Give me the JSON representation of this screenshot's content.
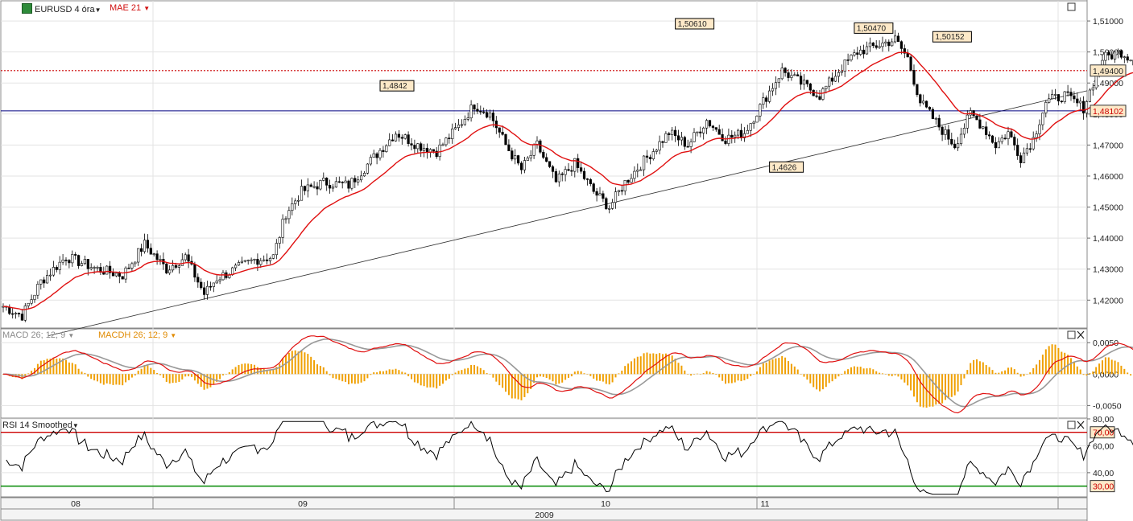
{
  "header": {
    "symbol": "EURUSD 4 óra",
    "ma_label": "MAE 21",
    "macd_label": "MACD 26; 12; 9",
    "macdh_label": "MACDH 26; 12; 9",
    "rsi_label": "RSI 14 Smoothed"
  },
  "colors": {
    "candle": "#000000",
    "ma": "#e01010",
    "macd_line": "#e01010",
    "signal_line": "#999999",
    "histogram": "#f0a000",
    "rsi_line": "#000000",
    "rsi_upper": "#cc0000",
    "rsi_lower": "#008800",
    "current_price_line": "#cc0000",
    "support_line": "#000080",
    "grid": "#e3e3e3"
  },
  "chart_data": [
    {
      "type": "candlestick",
      "title": "EURUSD 4 óra",
      "overlay": "MAE 21",
      "ylim": [
        1.411,
        1.5165
      ],
      "y_ticks": [
        "1,42000",
        "1,43000",
        "1,44000",
        "1,45000",
        "1,46000",
        "1,47000",
        "1,48000",
        "1,49000",
        "1,50000",
        "1,51000"
      ],
      "x_month_labels": [
        "08",
        "09",
        "10",
        "11"
      ],
      "x_year_label": "2009",
      "annotations": [
        "1,4842",
        "1,50610",
        "1,50470",
        "1,50152",
        "1,4626"
      ],
      "current_price": "1,49400",
      "horizontal_line": "1,48102",
      "trendline": true,
      "anchors": [
        [
          0,
          1.418
        ],
        [
          6,
          1.415
        ],
        [
          12,
          1.426
        ],
        [
          20,
          1.434
        ],
        [
          30,
          1.43
        ],
        [
          38,
          1.428
        ],
        [
          45,
          1.438
        ],
        [
          52,
          1.43
        ],
        [
          58,
          1.434
        ],
        [
          64,
          1.422
        ],
        [
          68,
          1.427
        ],
        [
          74,
          1.43
        ],
        [
          80,
          1.433
        ],
        [
          86,
          1.434
        ],
        [
          90,
          1.448
        ],
        [
          95,
          1.455
        ],
        [
          102,
          1.458
        ],
        [
          110,
          1.457
        ],
        [
          118,
          1.466
        ],
        [
          125,
          1.474
        ],
        [
          132,
          1.47
        ],
        [
          138,
          1.468
        ],
        [
          145,
          1.476
        ],
        [
          150,
          1.483
        ],
        [
          155,
          1.48
        ],
        [
          160,
          1.47
        ],
        [
          165,
          1.462
        ],
        [
          170,
          1.47
        ],
        [
          176,
          1.458
        ],
        [
          182,
          1.464
        ],
        [
          188,
          1.455
        ],
        [
          193,
          1.45
        ],
        [
          198,
          1.458
        ],
        [
          205,
          1.466
        ],
        [
          212,
          1.474
        ],
        [
          218,
          1.47
        ],
        [
          224,
          1.478
        ],
        [
          230,
          1.472
        ],
        [
          236,
          1.474
        ],
        [
          242,
          1.484
        ],
        [
          248,
          1.494
        ],
        [
          254,
          1.49
        ],
        [
          260,
          1.486
        ],
        [
          266,
          1.494
        ],
        [
          272,
          1.5
        ],
        [
          278,
          1.502
        ],
        [
          284,
          1.504
        ],
        [
          288,
          1.498
        ],
        [
          292,
          1.484
        ],
        [
          298,
          1.476
        ],
        [
          303,
          1.47
        ],
        [
          308,
          1.48
        ],
        [
          312,
          1.476
        ],
        [
          316,
          1.47
        ],
        [
          320,
          1.474
        ],
        [
          324,
          1.466
        ],
        [
          328,
          1.472
        ],
        [
          332,
          1.484
        ],
        [
          338,
          1.486
        ],
        [
          344,
          1.482
        ],
        [
          350,
          1.498
        ],
        [
          356,
          1.5
        ],
        [
          362,
          1.496
        ],
        [
          366,
          1.486
        ],
        [
          370,
          1.488
        ],
        [
          374,
          1.496
        ],
        [
          378,
          1.498
        ],
        [
          382,
          1.486
        ],
        [
          386,
          1.49
        ],
        [
          389,
          1.494
        ]
      ]
    },
    {
      "type": "line",
      "title": "MACD 26; 12; 9",
      "series": [
        {
          "name": "MACD 26; 12; 9"
        },
        {
          "name": "MACDH 26; 12; 9"
        }
      ],
      "ylim": [
        -0.007,
        0.0072
      ],
      "y_ticks": [
        "0,0050",
        "0,0000",
        "-0,0050"
      ]
    },
    {
      "type": "line",
      "title": "RSI 14 Smoothed",
      "ylim": [
        22,
        80
      ],
      "y_ticks": [
        "80,00",
        "60,00",
        "40,00"
      ],
      "levels": [
        "70,00",
        "30,00"
      ]
    }
  ]
}
